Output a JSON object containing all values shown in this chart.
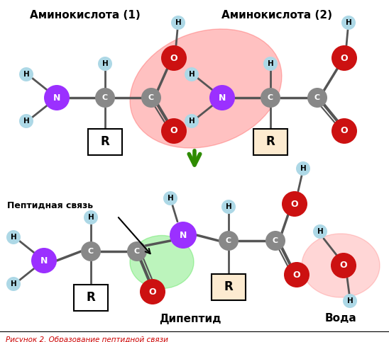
{
  "title": "Рисунок 2. Образование пептидной связи",
  "label_aa1": "Аминокислота (1)",
  "label_aa2": "Аминокислота (2)",
  "label_dipeptide": "Дипептид",
  "label_water": "Вода",
  "label_peptide_bond": "Пептидная связь",
  "colors": {
    "N": "#9B30FF",
    "C": "#888888",
    "O": "#CC1111",
    "H": "#ADD8E6",
    "bond": "#555555",
    "background": "#FFFFFF",
    "arrow_green": "#2E8B00",
    "red_glow": "#FF3333",
    "green_glow": "#22DD22"
  },
  "figsize": [
    5.48,
    4.83
  ],
  "dpi": 100
}
